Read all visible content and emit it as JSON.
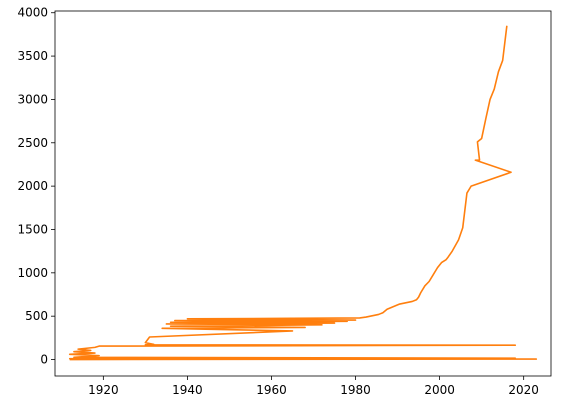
{
  "chart_data": {
    "type": "line",
    "title": "",
    "xlabel": "",
    "ylabel": "",
    "xlim": [
      1908.5,
      2026.5
    ],
    "ylim": [
      -190,
      4020
    ],
    "grid": false,
    "legend": "none",
    "x_ticks": [
      1920,
      1940,
      1960,
      1980,
      2000,
      2020
    ],
    "y_ticks": [
      0,
      500,
      1000,
      1500,
      2000,
      2500,
      3000,
      3500,
      4000
    ],
    "series": [
      {
        "name": "",
        "color": "#ff7f0e",
        "x": [
          2016,
          2015,
          2014,
          2013,
          2012,
          2011,
          2010,
          2009,
          2009.5,
          2008.5,
          2017,
          2007.5,
          2006.5,
          2005.5,
          2004.5,
          2003,
          2002,
          2001.5,
          2000.5,
          1999.5,
          1998.5,
          1997.5,
          1996.5,
          1995.5,
          1995,
          1994.5,
          1993.5,
          1992.5,
          1991.5,
          1990.5,
          1989.5,
          1988.5,
          1987.5,
          1986.5,
          1985.5,
          1984.5,
          1983.5,
          1982.5,
          1981,
          1965,
          1940,
          1980,
          1937,
          1978,
          1936,
          1975,
          1935,
          1972,
          1936,
          1968,
          1934,
          1965,
          1931,
          1930,
          1932,
          1930,
          2018,
          1919,
          1918,
          1914,
          1917,
          1913,
          1918,
          1912,
          1919,
          1913,
          2018,
          1912,
          2023,
          1912
        ],
        "y": [
          3850,
          3450,
          3320,
          3120,
          3000,
          2780,
          2550,
          2510,
          2300,
          2300,
          2160,
          2000,
          1920,
          1520,
          1380,
          1250,
          1180,
          1150,
          1120,
          1060,
          980,
          900,
          850,
          770,
          720,
          690,
          670,
          660,
          650,
          640,
          620,
          600,
          580,
          540,
          520,
          510,
          500,
          490,
          480,
          475,
          470,
          455,
          450,
          440,
          430,
          420,
          410,
          400,
          385,
          370,
          360,
          330,
          260,
          195,
          175,
          170,
          165,
          155,
          140,
          120,
          105,
          90,
          75,
          60,
          45,
          25,
          15,
          10,
          5,
          0
        ]
      }
    ]
  }
}
